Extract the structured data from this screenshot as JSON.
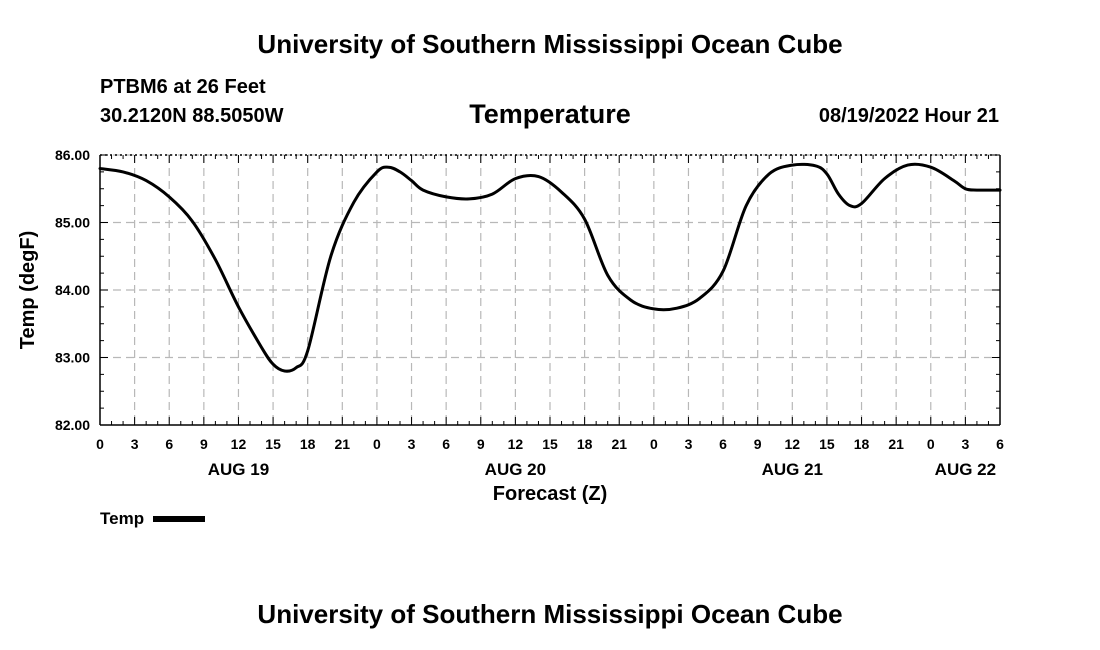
{
  "header": {
    "title": "University of Southern Mississippi Ocean Cube",
    "station": "PTBM6 at 26 Feet",
    "coords": "30.2120N  88.5050W",
    "parameter": "Temperature",
    "datetime": "08/19/2022 Hour 21"
  },
  "footer": {
    "title": "University of Southern Mississippi Ocean Cube"
  },
  "legend": {
    "label": "Temp",
    "color": "#000000"
  },
  "chart_data": {
    "type": "line",
    "title": "Temperature",
    "xlabel": "Forecast (Z)",
    "ylabel": "Temp (degF)",
    "xlim": [
      0,
      78
    ],
    "ylim": [
      82.0,
      86.0
    ],
    "grid": true,
    "y_ticks": [
      82.0,
      83.0,
      84.0,
      85.0,
      86.0
    ],
    "y_tick_labels": [
      "82.00",
      "83.00",
      "84.00",
      "85.00",
      "86.00"
    ],
    "x_ticks": [
      0,
      3,
      6,
      9,
      12,
      15,
      18,
      21,
      24,
      27,
      30,
      33,
      36,
      39,
      42,
      45,
      48,
      51,
      54,
      57,
      60,
      63,
      66,
      69,
      72,
      75,
      78
    ],
    "x_tick_labels": [
      "0",
      "3",
      "6",
      "9",
      "12",
      "15",
      "18",
      "21",
      "0",
      "3",
      "6",
      "9",
      "12",
      "15",
      "18",
      "21",
      "0",
      "3",
      "6",
      "9",
      "12",
      "15",
      "18",
      "21",
      "0",
      "3",
      "6"
    ],
    "date_labels": [
      {
        "hour": 12,
        "label": "AUG 19"
      },
      {
        "hour": 36,
        "label": "AUG 20"
      },
      {
        "hour": 60,
        "label": "AUG 21"
      },
      {
        "hour": 75,
        "label": "AUG 22"
      }
    ],
    "series": [
      {
        "name": "Temp",
        "x": [
          0,
          2,
          4,
          6,
          8,
          10,
          12,
          14,
          15,
          16,
          17,
          18,
          20,
          22,
          24,
          25,
          26,
          27,
          28,
          30,
          32,
          34,
          36,
          38,
          40,
          42,
          44,
          46,
          48,
          50,
          52,
          54,
          56,
          58,
          60,
          62,
          63,
          64,
          65,
          66,
          68,
          70,
          72,
          74,
          75,
          76,
          78
        ],
        "values": [
          85.8,
          85.75,
          85.62,
          85.38,
          85.02,
          84.45,
          83.75,
          83.15,
          82.9,
          82.8,
          82.85,
          83.1,
          84.5,
          85.3,
          85.75,
          85.82,
          85.75,
          85.62,
          85.48,
          85.38,
          85.35,
          85.42,
          85.65,
          85.68,
          85.45,
          85.05,
          84.22,
          83.85,
          83.72,
          83.73,
          83.88,
          84.28,
          85.25,
          85.72,
          85.85,
          85.84,
          85.72,
          85.42,
          85.25,
          85.28,
          85.65,
          85.85,
          85.82,
          85.62,
          85.5,
          85.48,
          85.48
        ]
      }
    ]
  }
}
